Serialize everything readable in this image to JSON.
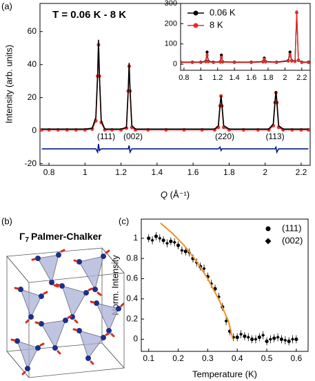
{
  "panels": {
    "a": "(a)",
    "b": "(b)",
    "c": "(c)"
  },
  "diagram": {
    "title": {
      "symbol": "Γ",
      "subscript": "7",
      "text": "Palmer-Chalker"
    }
  },
  "chart_data": [
    {
      "type": "line",
      "title": "T = 0.06 K - 8 K",
      "ylabel": "Intensity (arb. units)",
      "xlabel": {
        "variable": "Q",
        "unit": "(Å⁻¹)"
      },
      "annotations": [
        "(111)",
        "(002)",
        "(220)",
        "(113)"
      ],
      "xlim": [
        0.75,
        2.25
      ],
      "xticks": [
        0.8,
        1,
        1.2,
        1.4,
        1.6,
        1.8,
        2,
        2.2
      ],
      "ylim": [
        -21,
        77
      ],
      "yticks": [
        -20,
        0,
        20,
        40,
        60
      ],
      "x": [
        0.76,
        0.8,
        0.85,
        0.9,
        0.95,
        1.0,
        1.04,
        1.06,
        1.07,
        1.075,
        1.08,
        1.09,
        1.11,
        1.15,
        1.2,
        1.23,
        1.24,
        1.245,
        1.25,
        1.26,
        1.28,
        1.35,
        1.45,
        1.55,
        1.65,
        1.72,
        1.74,
        1.75,
        1.755,
        1.76,
        1.77,
        1.8,
        1.88,
        1.96,
        2.02,
        2.045,
        2.055,
        2.06,
        2.065,
        2.075,
        2.1,
        2.15,
        2.2,
        2.24
      ],
      "series": [
        {
          "color": "#e0302a",
          "line": true,
          "marker": "circle",
          "values": [
            0.5,
            0.5,
            0.5,
            0.5,
            0.5,
            0.5,
            1,
            6,
            33,
            52,
            33,
            5,
            0.5,
            0.5,
            0.5,
            1.5,
            24,
            39,
            24,
            2,
            0.5,
            0.5,
            0.5,
            0.5,
            0.5,
            0.5,
            2,
            15,
            21,
            15,
            2,
            0.5,
            0.5,
            0.5,
            0.5,
            3,
            17,
            23,
            17,
            2,
            0.5,
            0.5,
            0.5,
            0.5
          ]
        },
        {
          "color": "#000000",
          "line": true,
          "values": [
            1,
            1,
            1,
            1,
            1,
            1,
            1.5,
            8,
            34,
            55,
            34,
            6,
            1,
            1,
            1,
            2,
            25,
            41,
            25,
            3,
            1,
            1,
            1,
            1,
            1,
            1,
            3,
            16,
            21,
            16,
            3,
            1,
            1,
            1,
            1,
            4,
            18,
            24,
            18,
            3,
            1,
            1,
            1,
            1
          ]
        },
        {
          "color": "#00188f",
          "line": true,
          "values": [
            -11,
            -11,
            -11,
            -11,
            -11,
            -11,
            -11,
            -11,
            -13,
            -8,
            -12,
            -11,
            -11,
            -11,
            -11,
            -11,
            -11,
            -9,
            -13,
            -11,
            -11,
            -11,
            -11,
            -11,
            -11,
            -11,
            -11,
            -10,
            -12,
            -11,
            -11,
            -11,
            -11,
            -11,
            -11,
            -11,
            -11,
            -10,
            -13,
            -11,
            -11,
            -11,
            -11,
            -11
          ]
        }
      ]
    },
    {
      "type": "line",
      "legend": "upper left",
      "xlim": [
        0.76,
        2.3
      ],
      "xticks": [
        0.8,
        1,
        1.2,
        1.4,
        1.6,
        1.8,
        2,
        2.2
      ],
      "ylim": [
        -30,
        300
      ],
      "yticks": [
        0,
        100,
        200,
        300
      ],
      "x": [
        0.76,
        0.9,
        1.0,
        1.06,
        1.075,
        1.09,
        1.15,
        1.23,
        1.245,
        1.26,
        1.4,
        1.6,
        1.74,
        1.755,
        1.77,
        1.9,
        2.04,
        2.06,
        2.08,
        2.12,
        2.14,
        2.16,
        2.2,
        2.28
      ],
      "series": [
        {
          "name": "0.06 K",
          "color": "#000000",
          "line": true,
          "marker": "circle",
          "values": [
            10,
            10,
            10,
            15,
            60,
            15,
            10,
            12,
            45,
            12,
            10,
            10,
            13,
            30,
            13,
            10,
            18,
            60,
            18,
            15,
            255,
            20,
            10,
            10
          ]
        },
        {
          "name": "8 K",
          "color": "#e0302a",
          "line": true,
          "marker": "circle",
          "values": [
            8,
            8,
            8,
            12,
            45,
            12,
            8,
            10,
            35,
            10,
            8,
            8,
            11,
            25,
            11,
            8,
            15,
            48,
            15,
            13,
            258,
            18,
            8,
            8
          ]
        }
      ]
    },
    {
      "type": "scatter",
      "legend": "upper right",
      "ylabel": "Norm. Intensity",
      "xlabel": "Temperature (K)",
      "xlim": [
        0.075,
        0.64
      ],
      "xticks": [
        0.1,
        0.2,
        0.3,
        0.4,
        0.5,
        0.6
      ],
      "ylim": [
        -0.12,
        1.19
      ],
      "yticks": [
        0,
        0.2,
        0.4,
        0.6,
        0.8,
        1
      ],
      "series": [
        {
          "name": "(111)",
          "color": "#000000",
          "marker": "circle",
          "error": 0.04,
          "x": [
            0.1,
            0.125,
            0.15,
            0.175,
            0.2,
            0.225,
            0.25,
            0.275,
            0.3,
            0.325,
            0.35,
            0.375,
            0.4,
            0.425,
            0.45,
            0.475,
            0.5,
            0.525,
            0.55,
            0.575,
            0.6
          ],
          "values": [
            1.0,
            1.02,
            0.98,
            0.97,
            0.93,
            0.87,
            0.8,
            0.72,
            0.62,
            0.5,
            0.32,
            0.08,
            0.02,
            0.03,
            0.0,
            0.02,
            -0.02,
            0.01,
            0.0,
            -0.02,
            0.0
          ]
        },
        {
          "name": "(002)",
          "color": "#000000",
          "marker": "diamond",
          "error": 0.04,
          "x": [
            0.1125,
            0.1375,
            0.1625,
            0.1875,
            0.2125,
            0.2375,
            0.2625,
            0.2875,
            0.3125,
            0.3375,
            0.3625,
            0.3875,
            0.4125,
            0.4375,
            0.4625,
            0.4875,
            0.5125,
            0.5375,
            0.5625,
            0.5875
          ],
          "values": [
            0.98,
            1.0,
            0.95,
            0.96,
            0.88,
            0.86,
            0.76,
            0.7,
            0.55,
            0.42,
            0.18,
            0.02,
            0.05,
            0.02,
            0.0,
            0.04,
            0.0,
            0.02,
            -0.01,
            0.0
          ]
        },
        {
          "color": "#f0901e",
          "line": true,
          "x": [
            0.14,
            0.18,
            0.22,
            0.26,
            0.3,
            0.34,
            0.37,
            0.385
          ],
          "values": [
            1.15,
            1.05,
            0.93,
            0.78,
            0.6,
            0.38,
            0.18,
            0.0
          ]
        }
      ]
    }
  ]
}
